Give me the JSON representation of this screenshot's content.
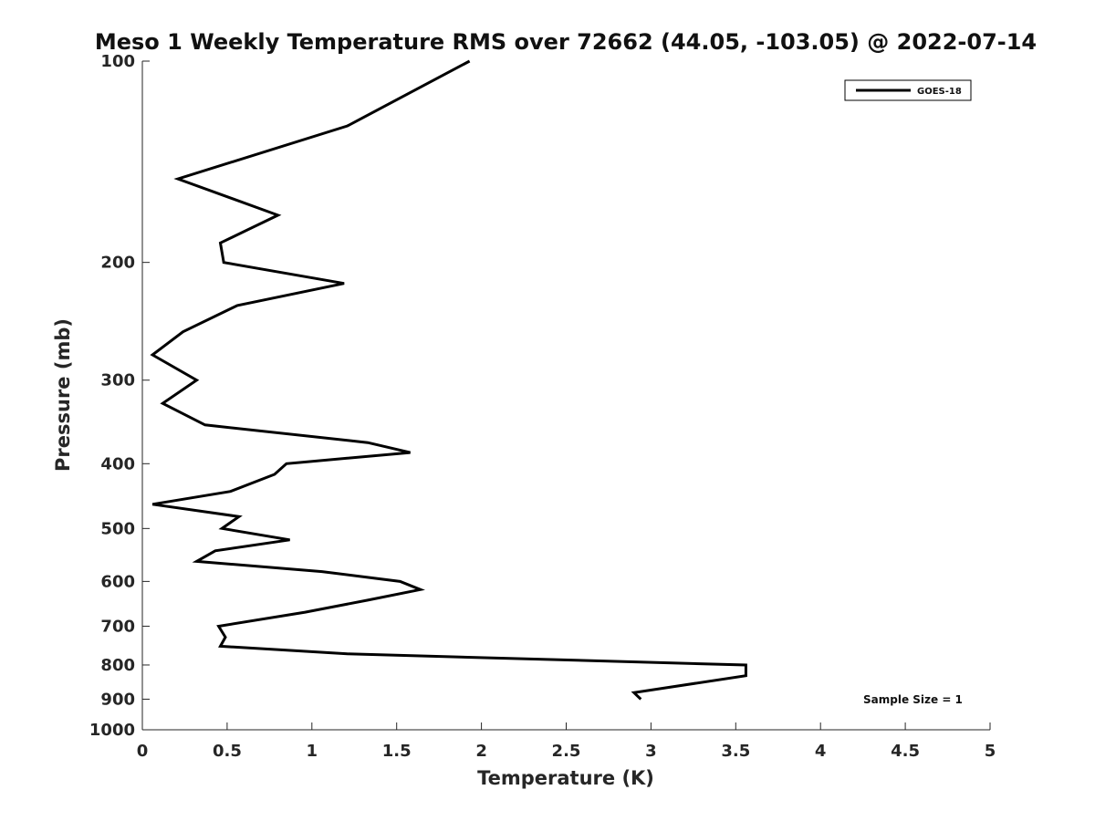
{
  "chart_data": {
    "type": "line",
    "title": "Meso 1 Weekly Temperature RMS over 72662 (44.05, -103.05) @ 2022-07-14",
    "xlabel": "Temperature (K)",
    "ylabel": "Pressure (mb)",
    "xlim": [
      0,
      5
    ],
    "ylim": [
      1000,
      100
    ],
    "yscale": "log",
    "y_reversed": true,
    "x_ticks": [
      "0",
      "0.5",
      "1",
      "1.5",
      "2",
      "2.5",
      "3",
      "3.5",
      "4",
      "4.5",
      "5"
    ],
    "y_ticks": [
      "100",
      "200",
      "300",
      "400",
      "500",
      "600",
      "700",
      "800",
      "900",
      "1000"
    ],
    "grid": false,
    "legend": {
      "position": "top-right",
      "entries": [
        "GOES-18"
      ]
    },
    "annotation": "Sample Size = 1",
    "series": [
      {
        "name": "GOES-18",
        "color": "#000000",
        "points": [
          [
            1.93,
            100
          ],
          [
            1.21,
            125
          ],
          [
            0.21,
            150
          ],
          [
            0.8,
            170
          ],
          [
            0.46,
            187
          ],
          [
            0.48,
            200
          ],
          [
            1.19,
            215
          ],
          [
            0.56,
            232
          ],
          [
            0.24,
            254
          ],
          [
            0.06,
            275
          ],
          [
            0.32,
            300
          ],
          [
            0.12,
            325
          ],
          [
            0.37,
            350
          ],
          [
            1.33,
            372
          ],
          [
            1.58,
            385
          ],
          [
            0.85,
            400
          ],
          [
            0.78,
            415
          ],
          [
            0.52,
            440
          ],
          [
            0.06,
            460
          ],
          [
            0.57,
            480
          ],
          [
            0.47,
            500
          ],
          [
            0.87,
            520
          ],
          [
            0.43,
            540
          ],
          [
            0.32,
            560
          ],
          [
            1.06,
            580
          ],
          [
            1.52,
            600
          ],
          [
            1.64,
            617
          ],
          [
            1.33,
            640
          ],
          [
            0.96,
            667
          ],
          [
            0.45,
            700
          ],
          [
            0.49,
            727
          ],
          [
            0.46,
            750
          ],
          [
            1.21,
            770
          ],
          [
            3.56,
            800
          ],
          [
            3.56,
            830
          ],
          [
            2.9,
            880
          ],
          [
            2.94,
            900
          ]
        ]
      }
    ]
  }
}
